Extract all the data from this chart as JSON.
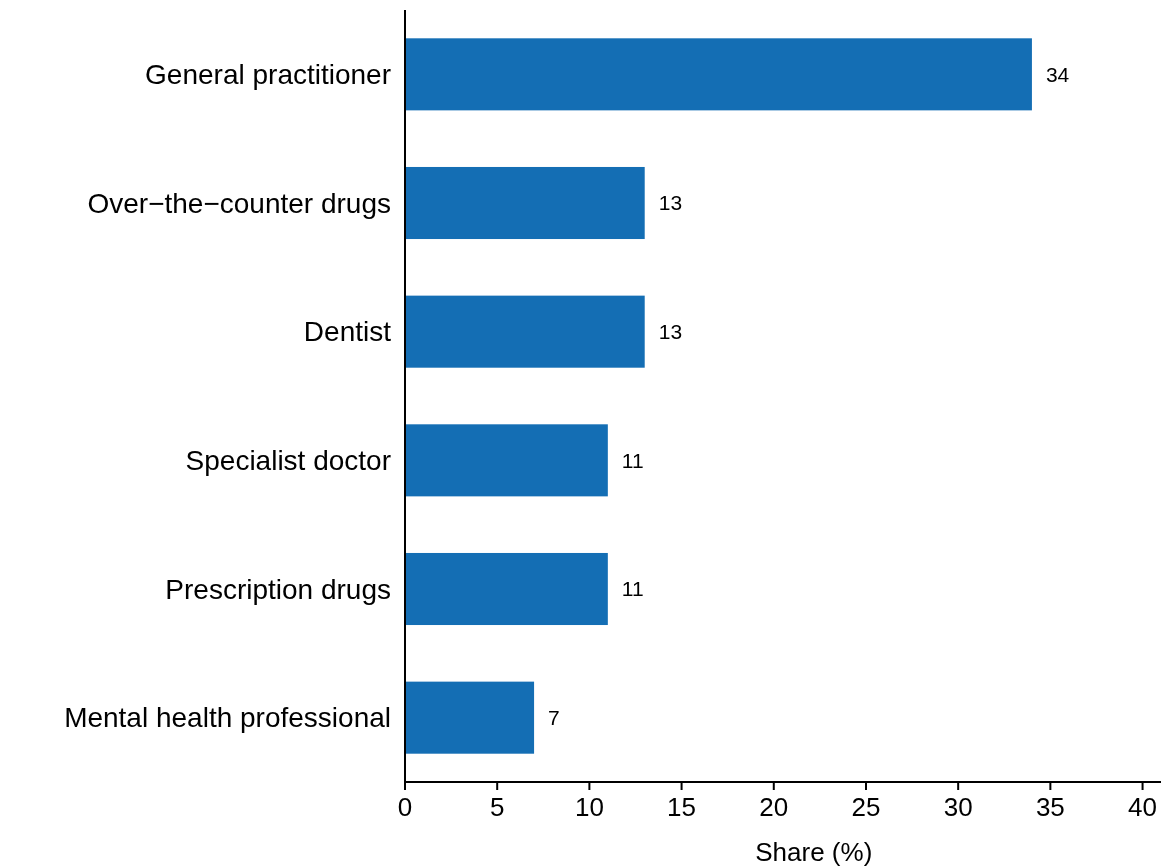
{
  "chart_data": {
    "type": "bar",
    "orientation": "horizontal",
    "xlabel": "Share (%)",
    "categories": [
      "General practitioner",
      "Over−the−counter drugs",
      "Dentist",
      "Specialist doctor",
      "Prescription drugs",
      "Mental health professional"
    ],
    "values": [
      34,
      13,
      13,
      11,
      11,
      7
    ],
    "color": "#146eb4",
    "xlim": [
      0,
      41
    ],
    "xticks": [
      0,
      5,
      10,
      15,
      20,
      25,
      30,
      35,
      40
    ],
    "data_labels": true
  }
}
